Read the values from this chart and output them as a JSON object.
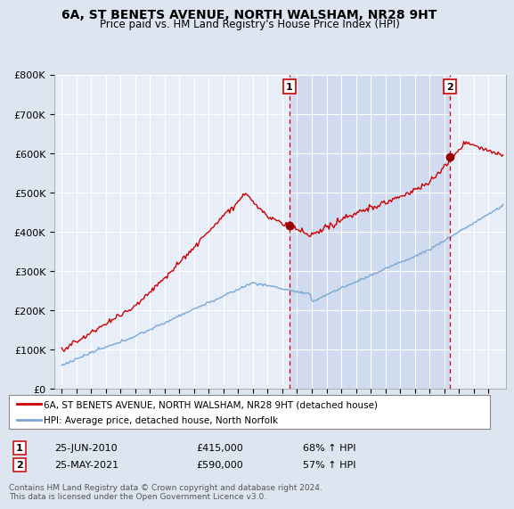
{
  "title": "6A, ST BENETS AVENUE, NORTH WALSHAM, NR28 9HT",
  "subtitle": "Price paid vs. HM Land Registry's House Price Index (HPI)",
  "ylabel_ticks": [
    "£0",
    "£100K",
    "£200K",
    "£300K",
    "£400K",
    "£500K",
    "£600K",
    "£700K",
    "£800K"
  ],
  "ylim": [
    0,
    800000
  ],
  "xlim_start": 1994.5,
  "xlim_end": 2025.2,
  "marker1_x": 2010.48,
  "marker1_y": 415000,
  "marker1_label": "1",
  "marker2_x": 2021.4,
  "marker2_y": 590000,
  "marker2_label": "2",
  "legend_line1": "6A, ST BENETS AVENUE, NORTH WALSHAM, NR28 9HT (detached house)",
  "legend_line2": "HPI: Average price, detached house, North Norfolk",
  "footer": "Contains HM Land Registry data © Crown copyright and database right 2024.\nThis data is licensed under the Open Government Licence v3.0.",
  "bg_color": "#dde5f0",
  "plot_bg_color": "#e8eef8",
  "highlight_color": "#ccd8ee",
  "red_line_color": "#cc0000",
  "blue_line_color": "#7aa8d4",
  "grid_color": "#ffffff",
  "title_fontsize": 10,
  "subtitle_fontsize": 8
}
